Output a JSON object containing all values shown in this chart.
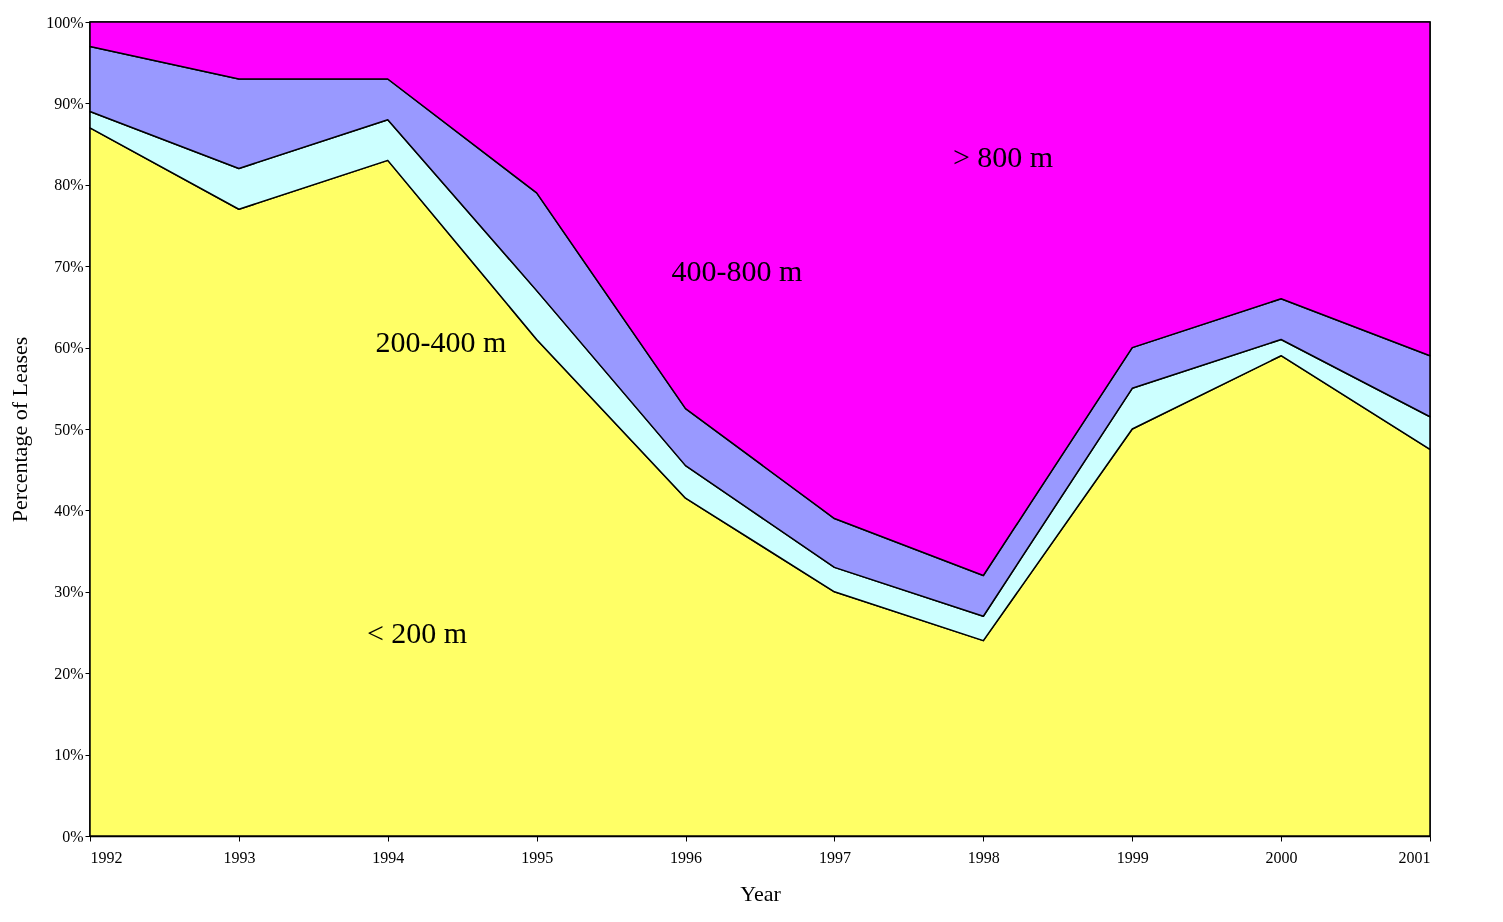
{
  "chart_data": {
    "type": "area",
    "stacked": true,
    "xlabel": "Year",
    "ylabel": "Percentage of Leases",
    "x": [
      1992,
      1993,
      1994,
      1995,
      1996,
      1997,
      1998,
      1999,
      2000,
      2001
    ],
    "series": [
      {
        "name": "< 200 m",
        "color": "#ffff66",
        "values": [
          87,
          77,
          83,
          61,
          41.5,
          30,
          24,
          50,
          59,
          47.5
        ]
      },
      {
        "name": "200-400 m",
        "color": "#ccffff",
        "values": [
          2,
          5,
          5,
          6,
          4,
          3,
          3,
          5,
          2,
          4
        ]
      },
      {
        "name": "400-800 m",
        "color": "#9999ff",
        "values": [
          8,
          11,
          5,
          12,
          7,
          6,
          5,
          5,
          5,
          7.5
        ]
      },
      {
        "name": "> 800 m",
        "color": "#ff00ff",
        "values": [
          3,
          7,
          7,
          21,
          47.5,
          61,
          68,
          40,
          34,
          41
        ]
      }
    ],
    "xlim": [
      1992,
      2001
    ],
    "xticks": [
      1992,
      1993,
      1994,
      1995,
      1996,
      1997,
      1998,
      1999,
      2000,
      2001
    ],
    "ylim": [
      0,
      100
    ],
    "grid": false,
    "legend": false,
    "yticks": [
      {
        "value": 0,
        "label": "0%"
      },
      {
        "value": 10,
        "label": "10%"
      },
      {
        "value": 20,
        "label": "20%"
      },
      {
        "value": 30,
        "label": "30%"
      },
      {
        "value": 40,
        "label": "40%"
      },
      {
        "value": 50,
        "label": "50%"
      },
      {
        "value": 60,
        "label": "60%"
      },
      {
        "value": 70,
        "label": "70%"
      },
      {
        "value": 80,
        "label": "80%"
      },
      {
        "value": 90,
        "label": "90%"
      },
      {
        "value": 100,
        "label": "100%"
      }
    ]
  }
}
